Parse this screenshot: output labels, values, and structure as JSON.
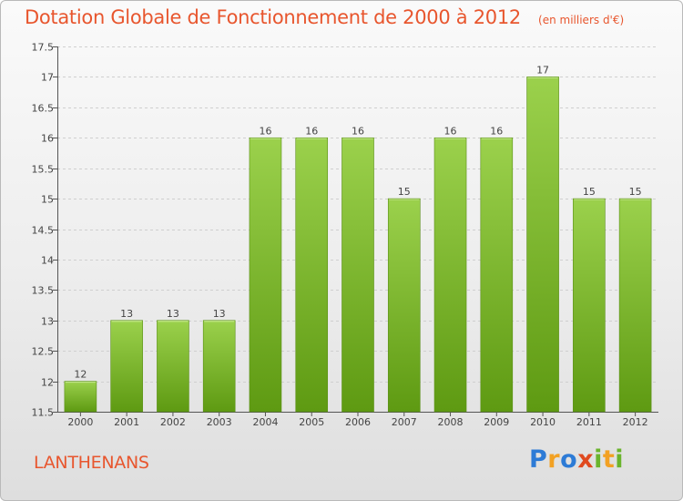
{
  "header": {
    "title": "Dotation Globale de Fonctionnement de 2000 à 2012",
    "unit": "(en milliers d'€)"
  },
  "footer": {
    "commune": "LANTHENANS",
    "logo": "Proxiti"
  },
  "colors": {
    "title": "#e8562e",
    "bar_top": "#9bd14c",
    "bar_bottom": "#5e9a12",
    "grid": "#cfcfcf"
  },
  "chart_data": {
    "type": "bar",
    "title": "Dotation Globale de Fonctionnement de 2000 à 2012",
    "subtitle": "(en milliers d'€)",
    "categories": [
      "2000",
      "2001",
      "2002",
      "2003",
      "2004",
      "2005",
      "2006",
      "2007",
      "2008",
      "2009",
      "2010",
      "2011",
      "2012"
    ],
    "values": [
      12,
      13,
      13,
      13,
      16,
      16,
      16,
      15,
      16,
      16,
      17,
      15,
      15
    ],
    "ylim": [
      11.5,
      17.5
    ],
    "yticks": [
      "11.5",
      "12",
      "12.5",
      "13",
      "13.5",
      "14",
      "14.5",
      "15",
      "15.5",
      "16",
      "16.5",
      "17",
      "17.5"
    ],
    "grid": true,
    "data_labels": true
  }
}
